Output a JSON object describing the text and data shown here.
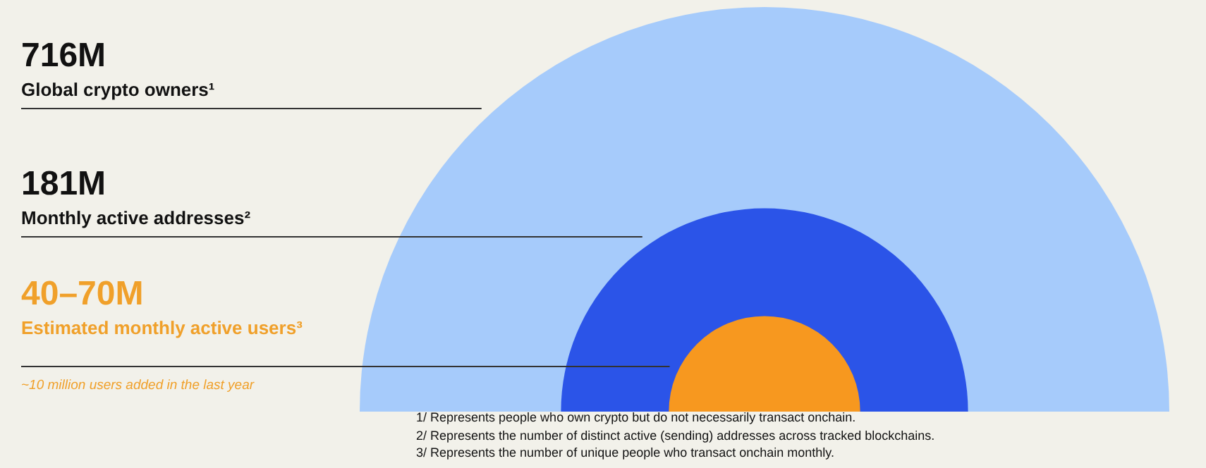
{
  "chart_data": {
    "type": "other",
    "categories": [
      "Global crypto owners¹",
      "Monthly active addresses²",
      "Estimated monthly active users³"
    ],
    "values": [
      716,
      181,
      40
    ],
    "value_labels": [
      "716M",
      "181M",
      "40–70M"
    ],
    "colors": [
      "#a6cbfb",
      "#2b54e8",
      "#f7981f"
    ],
    "annotations": [
      "~10 million users added in the last year",
      "1/ Represents people who own crypto but do not necessarily transact onchain.",
      "2/ Represents the number of distinct active (sending) addresses across tracked blockchains.",
      "3/ Represents the number of unique people who transact onchain monthly."
    ]
  }
}
